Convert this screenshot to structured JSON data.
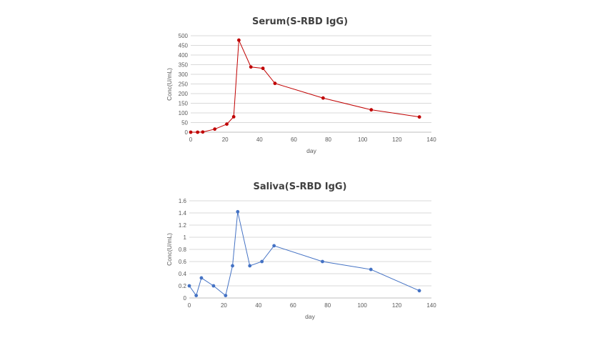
{
  "chart_data": [
    {
      "type": "line",
      "title": "Serum(S-RBD IgG)",
      "xlabel": "day",
      "ylabel": "Conc(U/mL)",
      "xlim": [
        0,
        140
      ],
      "ylim": [
        0,
        500
      ],
      "xticks": [
        "0",
        "20",
        "40",
        "60",
        "80",
        "100",
        "120",
        "140"
      ],
      "yticks": [
        "0",
        "50",
        "100",
        "150",
        "200",
        "250",
        "300",
        "350",
        "400",
        "450",
        "500"
      ],
      "grid": true,
      "color": "#c00000",
      "series": [
        {
          "x": [
            0,
            4,
            7,
            14,
            21,
            25,
            28,
            35,
            42,
            49,
            77,
            105,
            133
          ],
          "y": [
            0,
            0,
            1,
            16,
            42,
            80,
            477,
            338,
            331,
            253,
            177,
            116,
            79
          ]
        }
      ]
    },
    {
      "type": "line",
      "title": "Saliva(S-RBD IgG)",
      "xlabel": "day",
      "ylabel": "Conc(U/mL)",
      "xlim": [
        0,
        140
      ],
      "ylim": [
        0,
        1.6
      ],
      "xticks": [
        "0",
        "20",
        "40",
        "60",
        "80",
        "100",
        "120",
        "140"
      ],
      "yticks": [
        "0",
        "0.2",
        "0.4",
        "0.6",
        "0.8",
        "1",
        "1.2",
        "1.4",
        "1.6"
      ],
      "grid": true,
      "color": "#4472c4",
      "series": [
        {
          "x": [
            0,
            4,
            7,
            14,
            21,
            25,
            28,
            35,
            42,
            49,
            77,
            105,
            133
          ],
          "y": [
            0.2,
            0.04,
            0.33,
            0.2,
            0.04,
            0.53,
            1.42,
            0.53,
            0.6,
            0.86,
            0.6,
            0.47,
            0.12
          ]
        }
      ]
    }
  ]
}
